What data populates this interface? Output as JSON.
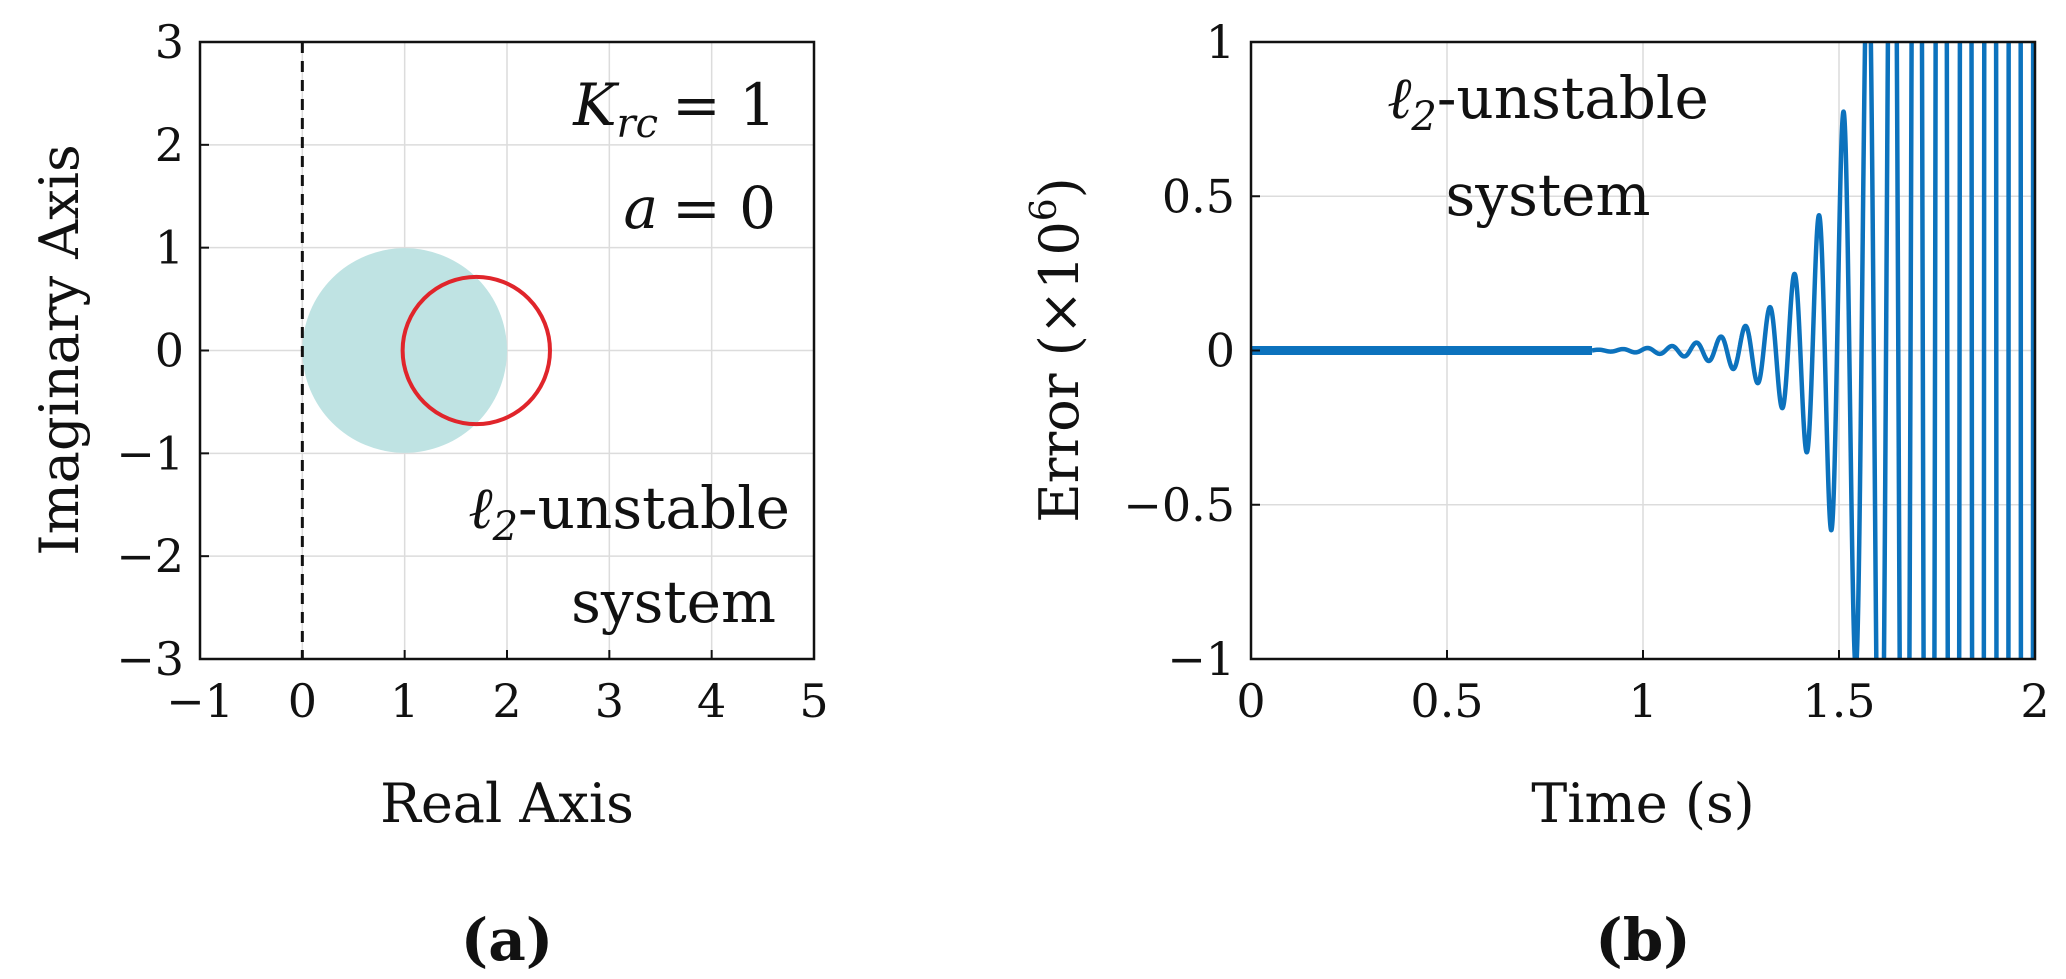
{
  "chart_data": [
    {
      "type": "scatter",
      "panel": "a",
      "xlabel": "Real Axis",
      "ylabel": "Imaginary Axis",
      "xlim": [
        -1,
        5
      ],
      "ylim": [
        -3,
        3
      ],
      "xticks": [
        "−1",
        "0",
        "1",
        "2",
        "3",
        "4",
        "5"
      ],
      "yticks": [
        "3",
        "2",
        "1",
        "0",
        "−1",
        "−2",
        "−3"
      ],
      "grid": true,
      "disk": {
        "center": [
          1,
          0
        ],
        "radius": 1,
        "color": "#bfe3e3"
      },
      "circle": {
        "center": [
          1.7,
          0
        ],
        "radius": 0.72,
        "color": "#e0252b"
      },
      "vline": {
        "x": 0,
        "style": "dashed",
        "color": "#111111"
      },
      "annotations": {
        "k_sym": "K",
        "k_sub": "rc",
        "k_val": "= 1",
        "a_sym": "a",
        "a_val": "= 0",
        "ell_sym": "ℓ",
        "ell_sub": "2",
        "line1_rest": "-unstable",
        "line2": "system"
      }
    },
    {
      "type": "line",
      "panel": "b",
      "xlabel": "Time (s)",
      "ylabel_main": "Error (×10",
      "ylabel_sup": "6",
      "ylabel_close": ")",
      "xlim": [
        0,
        2
      ],
      "ylim": [
        -1,
        1
      ],
      "xticks": [
        "0",
        "0.5",
        "1",
        "1.5",
        "2"
      ],
      "yticks": [
        "1",
        "0.5",
        "0",
        "−0.5",
        "−1"
      ],
      "grid": true,
      "series": [
        {
          "color": "#0c72bd",
          "signal": {
            "onset_time": 0.87,
            "amplitude_at_1_5s": 0.7,
            "growth_rate_per_s": 9.1,
            "frequency_hz": 16
          }
        }
      ],
      "annotations": {
        "ell_sym": "ℓ",
        "ell_sub": "2",
        "line1_rest": "-unstable",
        "line2": "system"
      }
    }
  ],
  "panel_labels": [
    "(a)",
    "(b)"
  ]
}
